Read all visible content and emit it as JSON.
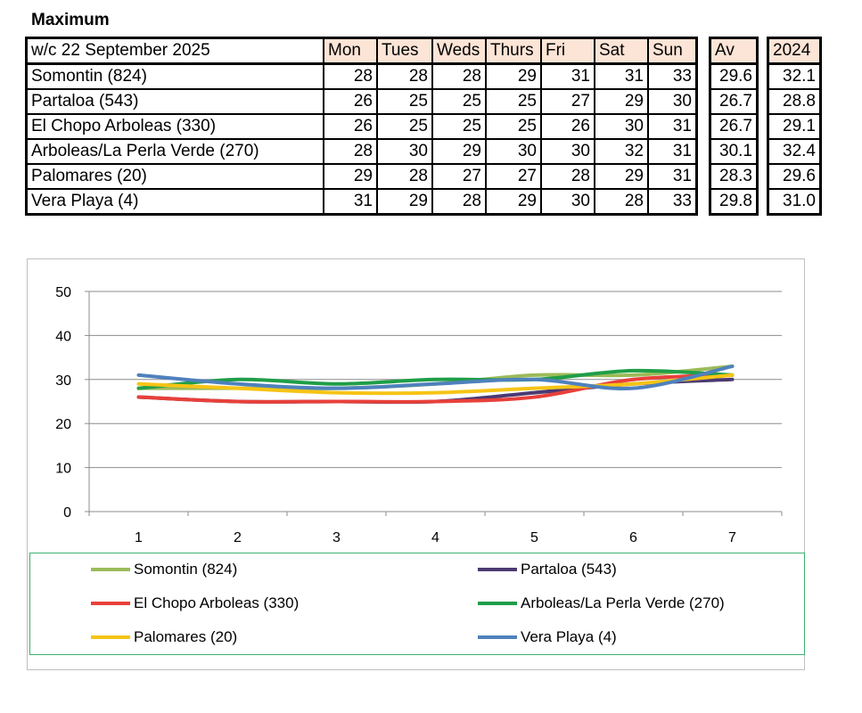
{
  "title": "Maximum",
  "table": {
    "header_label": "w/c 22 September  2025",
    "days": [
      "Mon",
      "Tues",
      "Weds",
      "Thurs",
      "Fri",
      "Sat",
      "Sun"
    ],
    "av_label": "Av",
    "year_label": "2024",
    "rows": [
      {
        "name": "Somontin (824)",
        "values": [
          "28",
          "28",
          "28",
          "29",
          "31",
          "31",
          "33"
        ],
        "av": "29.6",
        "prev": "32.1"
      },
      {
        "name": "Partaloa (543)",
        "values": [
          "26",
          "25",
          "25",
          "25",
          "27",
          "29",
          "30"
        ],
        "av": "26.7",
        "prev": "28.8"
      },
      {
        "name": "El Chopo  Arboleas (330)",
        "values": [
          "26",
          "25",
          "25",
          "25",
          "26",
          "30",
          "31"
        ],
        "av": "26.7",
        "prev": "29.1"
      },
      {
        "name": "Arboleas/La Perla Verde (270)",
        "values": [
          "28",
          "30",
          "29",
          "30",
          "30",
          "32",
          "31"
        ],
        "av": "30.1",
        "prev": "32.4"
      },
      {
        "name": "Palomares (20)",
        "values": [
          "29",
          "28",
          "27",
          "27",
          "28",
          "29",
          "31"
        ],
        "av": "28.3",
        "prev": "29.6"
      },
      {
        "name": "Vera Playa (4)",
        "values": [
          "31",
          "29",
          "28",
          "29",
          "30",
          "28",
          "33"
        ],
        "av": "29.8",
        "prev": "31.0"
      }
    ]
  },
  "chart_data": {
    "type": "line",
    "x": [
      1,
      2,
      3,
      4,
      5,
      6,
      7
    ],
    "ylim": [
      0,
      50
    ],
    "yticks": [
      0,
      10,
      20,
      30,
      40,
      50
    ],
    "grid": true,
    "legend_position": "bottom",
    "series": [
      {
        "name": "Somontin (824)",
        "color": "#9bbb59",
        "values": [
          28,
          28,
          28,
          29,
          31,
          31,
          33
        ]
      },
      {
        "name": "Partaloa (543)",
        "color": "#4b3a73",
        "values": [
          26,
          25,
          25,
          25,
          27,
          29,
          30
        ]
      },
      {
        "name": "El Chopo  Arboleas (330)",
        "color": "#e8403a",
        "values": [
          26,
          25,
          25,
          25,
          26,
          30,
          31
        ]
      },
      {
        "name": "Arboleas/La Perla Verde (270)",
        "color": "#1f9e48",
        "values": [
          28,
          30,
          29,
          30,
          30,
          32,
          31
        ]
      },
      {
        "name": "Palomares (20)",
        "color": "#f6c415",
        "values": [
          29,
          28,
          27,
          27,
          28,
          29,
          31
        ]
      },
      {
        "name": "Vera Playa (4)",
        "color": "#4f81bd",
        "values": [
          31,
          29,
          28,
          29,
          30,
          28,
          33
        ]
      }
    ]
  }
}
